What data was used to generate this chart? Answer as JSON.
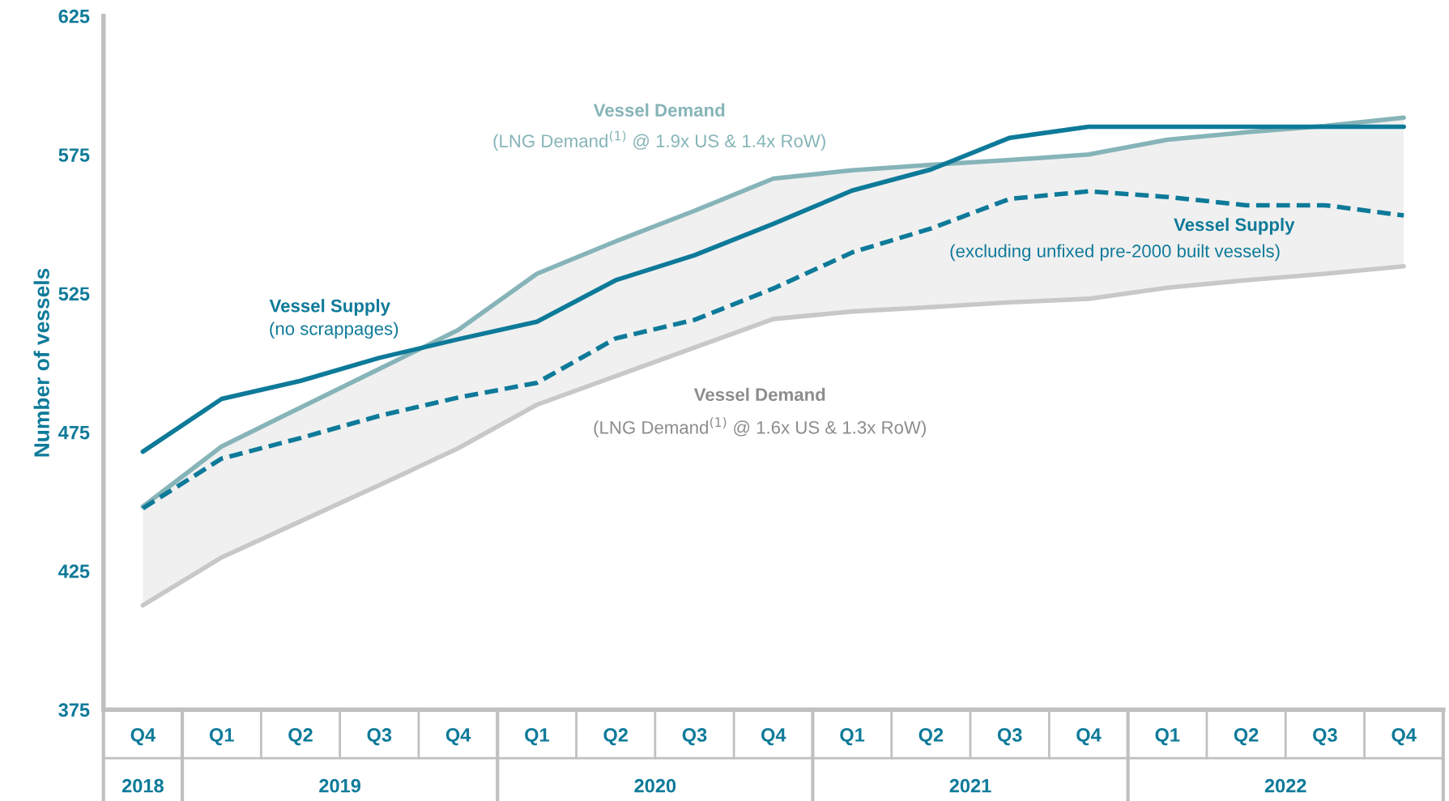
{
  "chart_data": {
    "type": "line",
    "ylabel": "Number of vessels",
    "categories": [
      "Q4",
      "Q1",
      "Q2",
      "Q3",
      "Q4",
      "Q1",
      "Q2",
      "Q3",
      "Q4",
      "Q1",
      "Q2",
      "Q3",
      "Q4",
      "Q1",
      "Q2",
      "Q3",
      "Q4"
    ],
    "series": [
      {
        "name": "Vessel Supply",
        "color": "#0e7a99",
        "line_style": "solid",
        "values": [
          468,
          487,
          493.5,
          501.8,
          508.5,
          514.8,
          529.8,
          538.8,
          550.1,
          562.1,
          569.7,
          581.1,
          585.1,
          585.1,
          585.1,
          585.1,
          585.1
        ]
      },
      {
        "name": "Vessel Demand",
        "color": "#86b4b8",
        "line_style": "solid",
        "values": [
          448.2,
          469.9,
          483.9,
          497.8,
          511.8,
          532.1,
          543.8,
          554.8,
          566.4,
          569.4,
          571.4,
          573.1,
          575.1,
          580.4,
          583.1,
          585.4,
          588.4
        ]
      },
      {
        "name": "Vessel Supply",
        "color": "#0e7a99",
        "line_style": "dashed",
        "values": [
          447.6,
          465.5,
          472.9,
          480.9,
          487.5,
          492.8,
          508.8,
          515.5,
          526.8,
          539.8,
          548.4,
          559.1,
          561.8,
          559.8,
          556.8,
          556.8,
          553.1
        ]
      },
      {
        "name": "Vessel Demand",
        "color": "#c8c8c8",
        "line_style": "solid",
        "values": [
          412.6,
          429.9,
          442.9,
          455.9,
          469.2,
          484.9,
          495.2,
          505.5,
          515.8,
          518.5,
          520.1,
          521.8,
          523.1,
          527.1,
          529.8,
          532.1,
          534.8
        ],
        "lower": [
          412.6,
          429.9,
          442.9,
          455.9,
          469.2,
          484.9,
          495.2,
          505.5,
          515.8,
          518.5,
          520.1,
          521.8,
          523.1,
          527.1,
          529.8,
          532.1,
          534.8
        ],
        "upper": [
          448.2,
          469.9,
          483.9,
          497.8,
          511.8,
          532.1,
          543.8,
          554.8,
          566.4,
          569.4,
          571.4,
          573.1,
          575.1,
          580.4,
          583.1,
          585.4,
          588.4
        ]
      }
    ],
    "ylim": [
      375,
      625
    ],
    "yticks": [
      375,
      425,
      475,
      525,
      575,
      625
    ],
    "grid": false,
    "legend": false,
    "annotations": [
      "(no scrappages)",
      "(LNG Demand$^{(1)}$ @ 1.9x US & 1.4x RoW)",
      "(excluding unfixed pre-2000 built vessels)",
      "(LNG Demand$^{(1)}$ @ 1.6x US & 1.3x RoW)",
      "2018",
      "2019",
      "2020",
      "2021",
      "2022"
    ]
  }
}
